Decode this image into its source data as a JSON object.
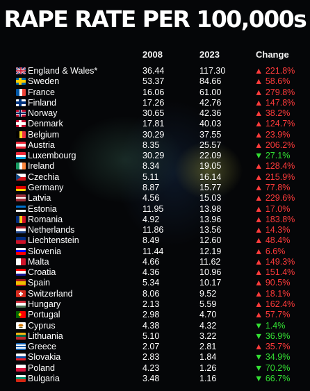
{
  "title": "RAPE RATE PER 100,000s",
  "headers": {
    "y2008": "2008",
    "y2023": "2023",
    "change": "Change"
  },
  "colors": {
    "up": "#ff3b3b",
    "down": "#33e033"
  },
  "chart_data": {
    "type": "table",
    "title": "RAPE RATE PER 100,000s",
    "columns": [
      "",
      "2008",
      "2023",
      "Change"
    ],
    "rows": [
      {
        "country": "England & Wales*",
        "y2008": "36.44",
        "y2023": "117.30",
        "arrow": "▲",
        "change": "221.8%",
        "direction": "up",
        "flag": "gb"
      },
      {
        "country": "Sweden",
        "y2008": "53.37",
        "y2023": "84.66",
        "arrow": "▲",
        "change": "58.6%",
        "direction": "up",
        "flag": "se"
      },
      {
        "country": "France",
        "y2008": "16.06",
        "y2023": "61.00",
        "arrow": "▲",
        "change": "279.8%",
        "direction": "up",
        "flag": "fr"
      },
      {
        "country": "Finland",
        "y2008": "17.26",
        "y2023": "42.76",
        "arrow": "▲",
        "change": "147.8%",
        "direction": "up",
        "flag": "fi"
      },
      {
        "country": "Norway",
        "y2008": "30.65",
        "y2023": "42.36",
        "arrow": "▲",
        "change": "38.2%",
        "direction": "up",
        "flag": "no"
      },
      {
        "country": "Denmark",
        "y2008": "17.81",
        "y2023": "40.03",
        "arrow": "▲",
        "change": "124.7%",
        "direction": "up",
        "flag": "dk"
      },
      {
        "country": "Belgium",
        "y2008": "30.29",
        "y2023": "37.55",
        "arrow": "▲",
        "change": "23.9%",
        "direction": "up",
        "flag": "be"
      },
      {
        "country": "Austria",
        "y2008": "8.35",
        "y2023": "25.57",
        "arrow": "▲",
        "change": "206.2%",
        "direction": "up",
        "flag": "at"
      },
      {
        "country": "Luxembourg",
        "y2008": "30.29",
        "y2023": "22.09",
        "arrow": "▼",
        "change": "27.1%",
        "direction": "down",
        "flag": "lu"
      },
      {
        "country": "Ireland",
        "y2008": "8.34",
        "y2023": "19.05",
        "arrow": "▲",
        "change": "128.4%",
        "direction": "up",
        "flag": "ie"
      },
      {
        "country": "Czechia",
        "y2008": "5.11",
        "y2023": "16.14",
        "arrow": "▲",
        "change": "215.9%",
        "direction": "up",
        "flag": "cz"
      },
      {
        "country": "Germany",
        "y2008": "8.87",
        "y2023": "15.77",
        "arrow": "▲",
        "change": "77.8%",
        "direction": "up",
        "flag": "de"
      },
      {
        "country": "Latvia",
        "y2008": "4.56",
        "y2023": "15.03",
        "arrow": "▲",
        "change": "229.6%",
        "direction": "up",
        "flag": "lv"
      },
      {
        "country": "Estonia",
        "y2008": "11.95",
        "y2023": "13.98",
        "arrow": "▲",
        "change": "17.0%",
        "direction": "up",
        "flag": "ee"
      },
      {
        "country": "Romania",
        "y2008": "4.92",
        "y2023": "13.96",
        "arrow": "▲",
        "change": "183.8%",
        "direction": "up",
        "flag": "ro"
      },
      {
        "country": "Netherlands",
        "y2008": "11.86",
        "y2023": "13.56",
        "arrow": "▲",
        "change": "14.3%",
        "direction": "up",
        "flag": "nl"
      },
      {
        "country": "Liechtenstein",
        "y2008": "8.49",
        "y2023": "12.60",
        "arrow": "▲",
        "change": "48.4%",
        "direction": "up",
        "flag": "li"
      },
      {
        "country": "Slovenia",
        "y2008": "11.44",
        "y2023": "12.19",
        "arrow": "▲",
        "change": "6.6%",
        "direction": "up",
        "flag": "si"
      },
      {
        "country": "Malta",
        "y2008": "4.66",
        "y2023": "11.62",
        "arrow": "▲",
        "change": "149.3%",
        "direction": "up",
        "flag": "mt"
      },
      {
        "country": "Croatia",
        "y2008": "4.36",
        "y2023": "10.96",
        "arrow": "▲",
        "change": "151.4%",
        "direction": "up",
        "flag": "hr"
      },
      {
        "country": "Spain",
        "y2008": "5.34",
        "y2023": "10.17",
        "arrow": "▲",
        "change": "90.5%",
        "direction": "up",
        "flag": "es"
      },
      {
        "country": "Switzerland",
        "y2008": "8.06",
        "y2023": "9.52",
        "arrow": "▲",
        "change": "18.1%",
        "direction": "up",
        "flag": "ch"
      },
      {
        "country": "Hungary",
        "y2008": "2.13",
        "y2023": "5.59",
        "arrow": "▲",
        "change": "162.4%",
        "direction": "up",
        "flag": "hu"
      },
      {
        "country": "Portugal",
        "y2008": "2.98",
        "y2023": "4.70",
        "arrow": "▲",
        "change": "57.7%",
        "direction": "up",
        "flag": "pt"
      },
      {
        "country": "Cyprus",
        "y2008": "4.38",
        "y2023": "4.32",
        "arrow": "▼",
        "change": "1.4%",
        "direction": "down",
        "flag": "cy"
      },
      {
        "country": "Lithuania",
        "y2008": "5.10",
        "y2023": "3.22",
        "arrow": "▼",
        "change": "36.9%",
        "direction": "down",
        "flag": "lt"
      },
      {
        "country": "Greece",
        "y2008": "2.07",
        "y2023": "2.81",
        "arrow": "▲",
        "change": "35.7%",
        "direction": "up",
        "flag": "gr"
      },
      {
        "country": "Slovakia",
        "y2008": "2.83",
        "y2023": "1.84",
        "arrow": "▼",
        "change": "34.9%",
        "direction": "down",
        "flag": "sk"
      },
      {
        "country": "Poland",
        "y2008": "4.23",
        "y2023": "1.26",
        "arrow": "▼",
        "change": "70.2%",
        "direction": "down",
        "flag": "pl"
      },
      {
        "country": "Bulgaria",
        "y2008": "3.48",
        "y2023": "1.16",
        "arrow": "▼",
        "change": "66.7%",
        "direction": "down",
        "flag": "bg"
      }
    ]
  }
}
